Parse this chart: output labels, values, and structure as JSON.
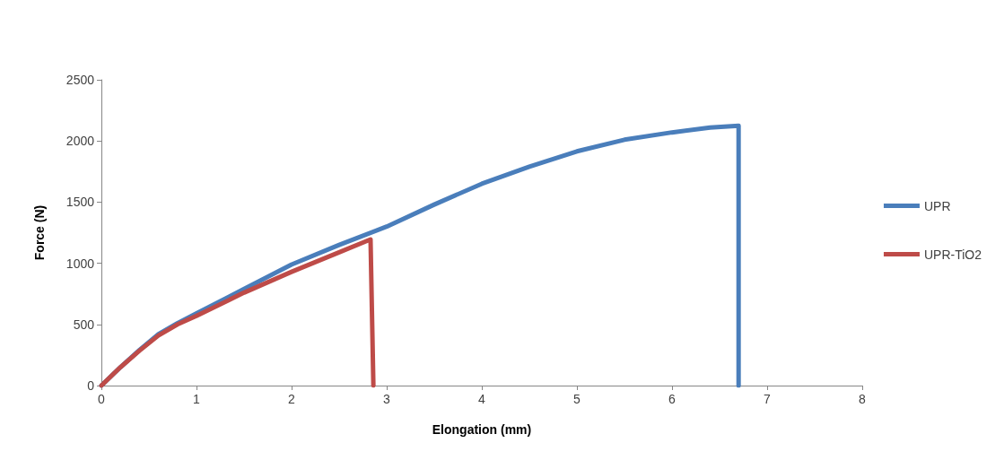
{
  "chart_data": {
    "type": "line",
    "xlabel": "Elongation (mm)",
    "ylabel": "Force (N)",
    "xlim": [
      0,
      8
    ],
    "xticks": [
      0,
      1,
      2,
      3,
      4,
      5,
      6,
      7,
      8
    ],
    "ylim": [
      0,
      2500
    ],
    "yticks": [
      0,
      500,
      1000,
      1500,
      2000,
      2500
    ],
    "grid": false,
    "legend": "right",
    "marker": "none",
    "line_style": "solid",
    "series": [
      {
        "name": "UPR",
        "color": "#4a7ebb",
        "x": [
          0,
          0.2,
          0.4,
          0.6,
          0.8,
          1,
          1.5,
          2,
          2.5,
          3,
          3.5,
          4,
          4.5,
          5,
          5.5,
          6,
          6.4,
          6.7,
          6.7
        ],
        "values": [
          0,
          150,
          290,
          420,
          510,
          590,
          790,
          990,
          1150,
          1300,
          1480,
          1650,
          1790,
          1915,
          2010,
          2070,
          2110,
          2125,
          0
        ]
      },
      {
        "name": "UPR-TiO2",
        "color": "#be4b48",
        "x": [
          0,
          0.2,
          0.4,
          0.6,
          0.8,
          1,
          1.5,
          2,
          2.5,
          2.83,
          2.86
        ],
        "values": [
          0,
          150,
          285,
          410,
          500,
          570,
          760,
          930,
          1090,
          1195,
          0
        ]
      }
    ]
  }
}
